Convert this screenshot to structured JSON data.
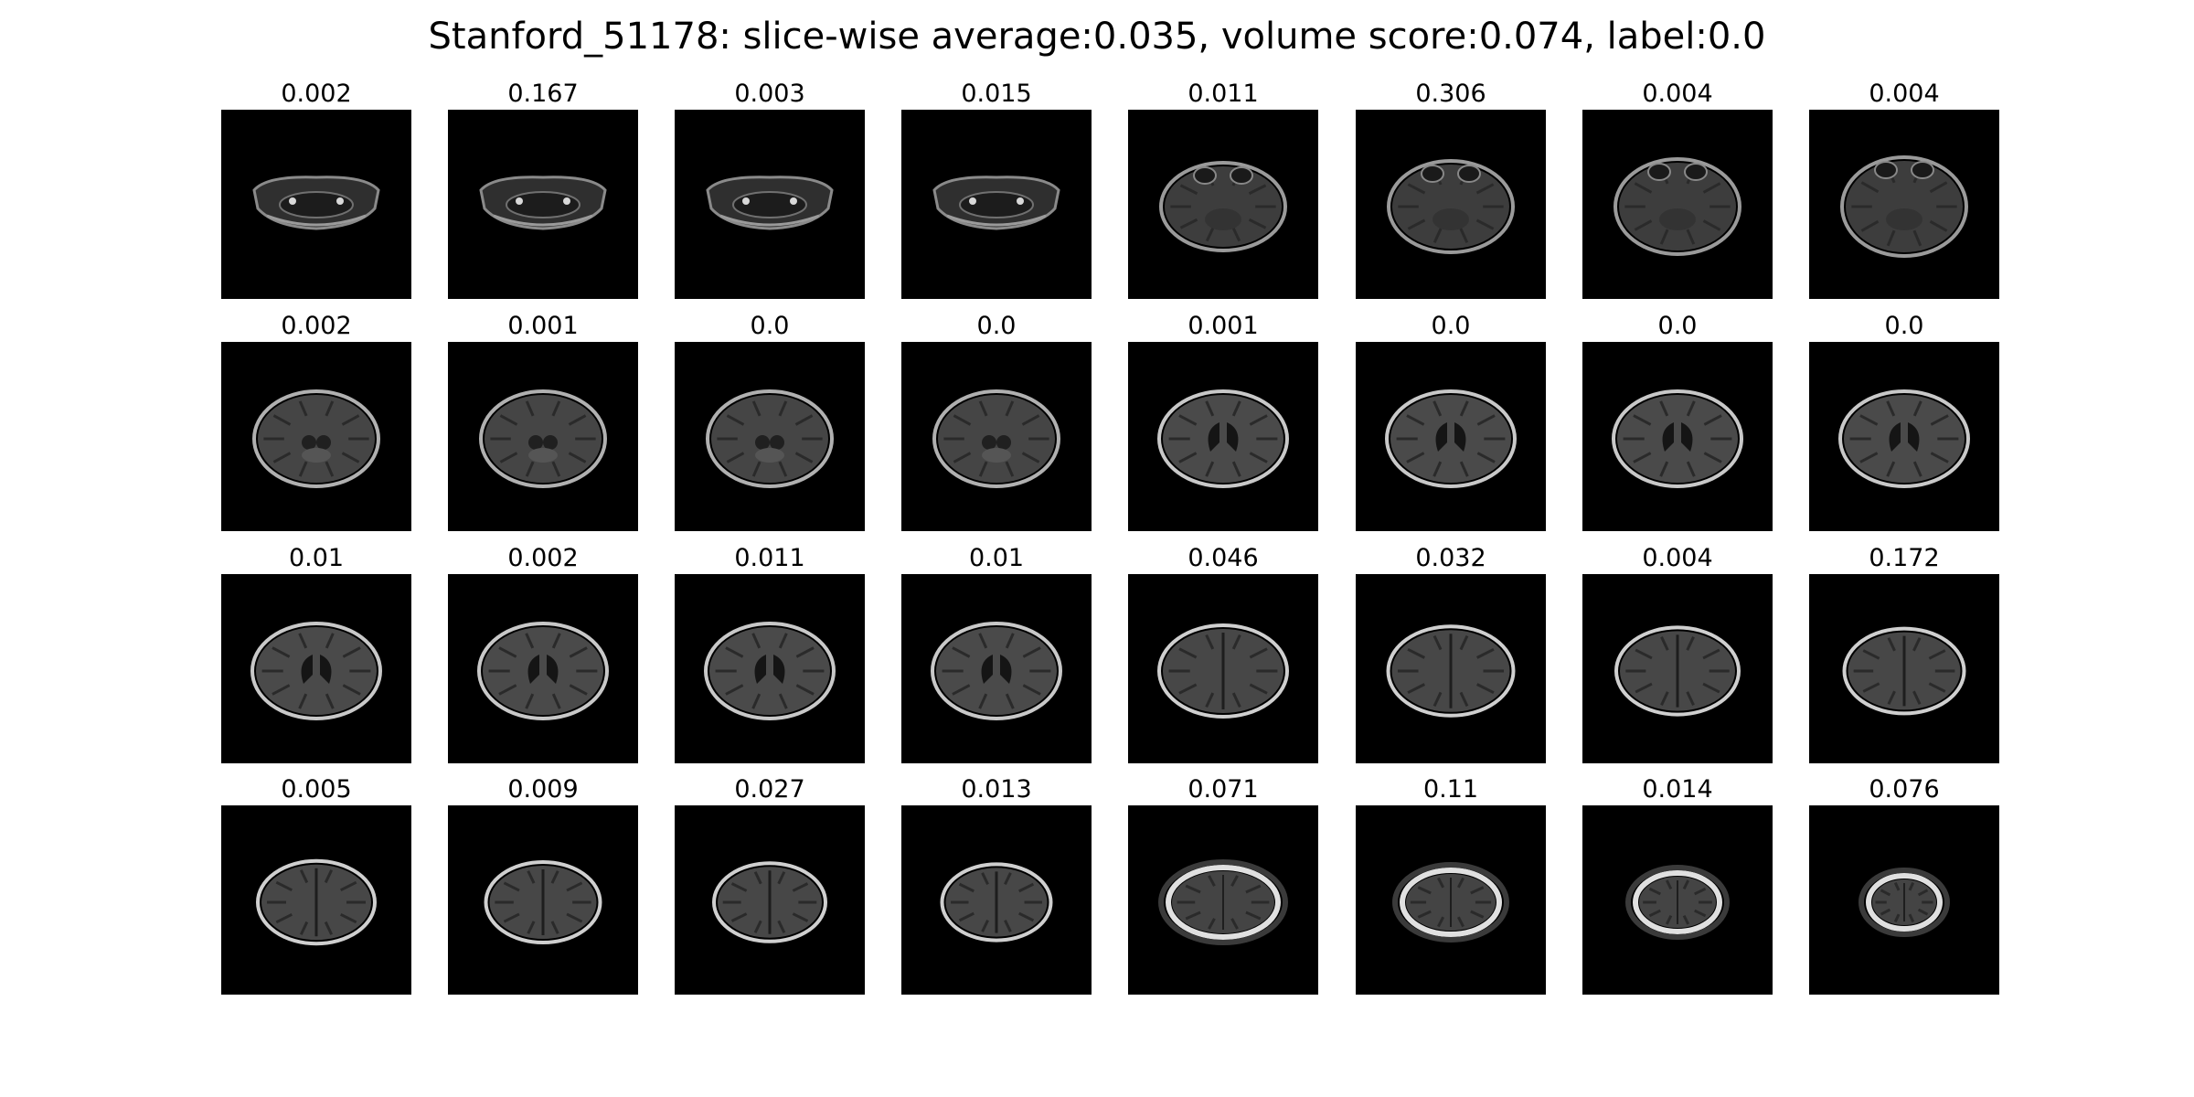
{
  "title": "Stanford_51178: slice-wise average:0.035, volume score:0.074, label:0.0",
  "slices": [
    {
      "score": "0.002",
      "kind": "base"
    },
    {
      "score": "0.167",
      "kind": "base"
    },
    {
      "score": "0.003",
      "kind": "base"
    },
    {
      "score": "0.015",
      "kind": "base"
    },
    {
      "score": "0.011",
      "kind": "orbit"
    },
    {
      "score": "0.306",
      "kind": "orbit"
    },
    {
      "score": "0.004",
      "kind": "orbit"
    },
    {
      "score": "0.004",
      "kind": "orbit"
    },
    {
      "score": "0.002",
      "kind": "midbrain"
    },
    {
      "score": "0.001",
      "kind": "midbrain"
    },
    {
      "score": "0.0",
      "kind": "midbrain"
    },
    {
      "score": "0.0",
      "kind": "midbrain"
    },
    {
      "score": "0.001",
      "kind": "ventricle"
    },
    {
      "score": "0.0",
      "kind": "ventricle"
    },
    {
      "score": "0.0",
      "kind": "ventricle"
    },
    {
      "score": "0.0",
      "kind": "ventricle"
    },
    {
      "score": "0.01",
      "kind": "ventricle"
    },
    {
      "score": "0.002",
      "kind": "ventricle"
    },
    {
      "score": "0.011",
      "kind": "ventricle"
    },
    {
      "score": "0.01",
      "kind": "ventricle"
    },
    {
      "score": "0.046",
      "kind": "upper"
    },
    {
      "score": "0.032",
      "kind": "upper"
    },
    {
      "score": "0.004",
      "kind": "upper"
    },
    {
      "score": "0.172",
      "kind": "upper"
    },
    {
      "score": "0.005",
      "kind": "upper"
    },
    {
      "score": "0.009",
      "kind": "upper"
    },
    {
      "score": "0.027",
      "kind": "upper"
    },
    {
      "score": "0.013",
      "kind": "upper"
    },
    {
      "score": "0.071",
      "kind": "vertex"
    },
    {
      "score": "0.11",
      "kind": "vertex"
    },
    {
      "score": "0.014",
      "kind": "vertex"
    },
    {
      "score": "0.076",
      "kind": "vertex"
    }
  ]
}
